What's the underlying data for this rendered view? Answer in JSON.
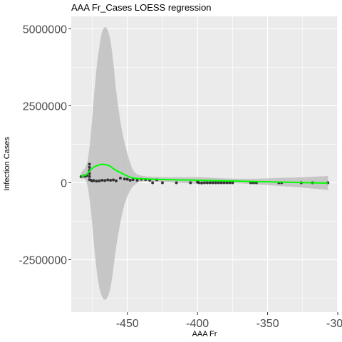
{
  "chart_data": {
    "type": "scatter",
    "title": "AAA Fr_Cases LOESS regression",
    "xlabel": "AAA Fr",
    "ylabel": "Infection Cases",
    "xlim": [
      -490,
      -300
    ],
    "ylim": [
      -4200000,
      5400000
    ],
    "x_ticks": [
      {
        "value": -450,
        "label": "-450"
      },
      {
        "value": -400,
        "label": "-400"
      },
      {
        "value": -350,
        "label": "-350"
      },
      {
        "value": -300,
        "label": "-300"
      }
    ],
    "y_ticks": [
      {
        "value": 5000000,
        "label": "5000000"
      },
      {
        "value": 2500000,
        "label": "2500000"
      },
      {
        "value": 0,
        "label": "0"
      },
      {
        "value": -2500000,
        "label": "-2500000"
      }
    ],
    "grid": true,
    "colors": {
      "panel": "#ebebeb",
      "grid": "#ffffff",
      "points": "#333333",
      "loess": "#00ff00",
      "ribbon": "#bfbfbf"
    },
    "points": [
      {
        "x": -483,
        "y": 200000
      },
      {
        "x": -481,
        "y": 220000
      },
      {
        "x": -480,
        "y": 210000
      },
      {
        "x": -479,
        "y": 230000
      },
      {
        "x": -477,
        "y": 600000
      },
      {
        "x": -477,
        "y": 500000
      },
      {
        "x": -477,
        "y": 400000
      },
      {
        "x": -477,
        "y": 300000
      },
      {
        "x": -477,
        "y": 200000
      },
      {
        "x": -477,
        "y": 100000
      },
      {
        "x": -476,
        "y": 80000
      },
      {
        "x": -475,
        "y": 60000
      },
      {
        "x": -474,
        "y": 70000
      },
      {
        "x": -472,
        "y": 50000
      },
      {
        "x": -470,
        "y": 60000
      },
      {
        "x": -468,
        "y": 80000
      },
      {
        "x": -466,
        "y": 70000
      },
      {
        "x": -464,
        "y": 90000
      },
      {
        "x": -462,
        "y": 80000
      },
      {
        "x": -460,
        "y": 90000
      },
      {
        "x": -458,
        "y": 60000
      },
      {
        "x": -455,
        "y": 150000
      },
      {
        "x": -452,
        "y": 120000
      },
      {
        "x": -450,
        "y": 110000
      },
      {
        "x": -448,
        "y": 80000
      },
      {
        "x": -446,
        "y": 100000
      },
      {
        "x": -443,
        "y": 80000
      },
      {
        "x": -440,
        "y": 110000
      },
      {
        "x": -437,
        "y": 100000
      },
      {
        "x": -434,
        "y": 80000
      },
      {
        "x": -432,
        "y": 0
      },
      {
        "x": -429,
        "y": 90000
      },
      {
        "x": -425,
        "y": 0
      },
      {
        "x": -415,
        "y": 0
      },
      {
        "x": -405,
        "y": 0
      },
      {
        "x": -400,
        "y": 20000
      },
      {
        "x": -399,
        "y": 0
      },
      {
        "x": -397,
        "y": -10000
      },
      {
        "x": -395,
        "y": 0
      },
      {
        "x": -393,
        "y": 0
      },
      {
        "x": -391,
        "y": 0
      },
      {
        "x": -389,
        "y": 0
      },
      {
        "x": -387,
        "y": 0
      },
      {
        "x": -385,
        "y": 0
      },
      {
        "x": -383,
        "y": 0
      },
      {
        "x": -381,
        "y": 0
      },
      {
        "x": -379,
        "y": 0
      },
      {
        "x": -377,
        "y": 0
      },
      {
        "x": -375,
        "y": 0
      },
      {
        "x": -362,
        "y": 0
      },
      {
        "x": -360,
        "y": 0
      },
      {
        "x": -358,
        "y": 0
      },
      {
        "x": -342,
        "y": 0
      },
      {
        "x": -340,
        "y": 0
      },
      {
        "x": -326,
        "y": 0
      },
      {
        "x": -318,
        "y": 0
      },
      {
        "x": -307,
        "y": 0
      }
    ],
    "loess": {
      "name": "",
      "points": [
        {
          "x": -483,
          "y": 220000,
          "lo": 120000,
          "hi": 330000
        },
        {
          "x": -480,
          "y": 240000,
          "lo": 100000,
          "hi": 500000
        },
        {
          "x": -478,
          "y": 320000,
          "lo": -200000,
          "hi": 800000
        },
        {
          "x": -476,
          "y": 430000,
          "lo": -900000,
          "hi": 1600000
        },
        {
          "x": -474,
          "y": 500000,
          "lo": -1900000,
          "hi": 2700000
        },
        {
          "x": -472,
          "y": 550000,
          "lo": -2800000,
          "hi": 3700000
        },
        {
          "x": -470,
          "y": 580000,
          "lo": -3400000,
          "hi": 4400000
        },
        {
          "x": -468,
          "y": 600000,
          "lo": -3700000,
          "hi": 4900000
        },
        {
          "x": -466,
          "y": 590000,
          "lo": -3800000,
          "hi": 5050000
        },
        {
          "x": -464,
          "y": 570000,
          "lo": -3700000,
          "hi": 4950000
        },
        {
          "x": -462,
          "y": 530000,
          "lo": -3400000,
          "hi": 4600000
        },
        {
          "x": -460,
          "y": 460000,
          "lo": -2800000,
          "hi": 3900000
        },
        {
          "x": -458,
          "y": 400000,
          "lo": -2100000,
          "hi": 3000000
        },
        {
          "x": -455,
          "y": 330000,
          "lo": -1300000,
          "hi": 2000000
        },
        {
          "x": -452,
          "y": 260000,
          "lo": -700000,
          "hi": 1300000
        },
        {
          "x": -448,
          "y": 180000,
          "lo": -250000,
          "hi": 650000
        },
        {
          "x": -445,
          "y": 150000,
          "lo": -80000,
          "hi": 350000
        },
        {
          "x": -440,
          "y": 130000,
          "lo": 40000,
          "hi": 230000
        },
        {
          "x": -430,
          "y": 110000,
          "lo": 30000,
          "hi": 190000
        },
        {
          "x": -420,
          "y": 100000,
          "lo": 10000,
          "hi": 180000
        },
        {
          "x": -410,
          "y": 90000,
          "lo": -10000,
          "hi": 180000
        },
        {
          "x": -400,
          "y": 80000,
          "lo": -30000,
          "hi": 180000
        },
        {
          "x": -390,
          "y": 70000,
          "lo": -20000,
          "hi": 160000
        },
        {
          "x": -380,
          "y": 60000,
          "lo": -10000,
          "hi": 140000
        },
        {
          "x": -370,
          "y": 50000,
          "lo": -20000,
          "hi": 130000
        },
        {
          "x": -360,
          "y": 40000,
          "lo": -50000,
          "hi": 130000
        },
        {
          "x": -350,
          "y": 30000,
          "lo": -80000,
          "hi": 140000
        },
        {
          "x": -340,
          "y": 20000,
          "lo": -110000,
          "hi": 160000
        },
        {
          "x": -330,
          "y": 10000,
          "lo": -140000,
          "hi": 170000
        },
        {
          "x": -320,
          "y": 0,
          "lo": -180000,
          "hi": 190000
        },
        {
          "x": -310,
          "y": -10000,
          "lo": -220000,
          "hi": 210000
        },
        {
          "x": -307,
          "y": -10000,
          "lo": -240000,
          "hi": 220000
        }
      ]
    }
  }
}
